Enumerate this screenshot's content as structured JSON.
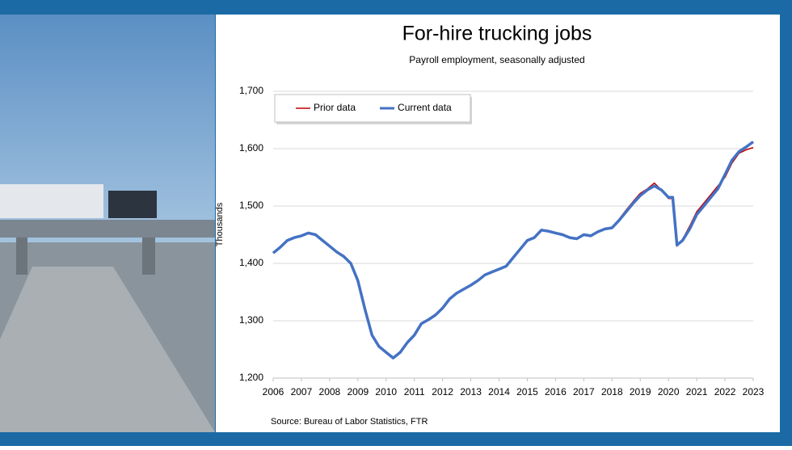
{
  "chart_data": {
    "type": "line",
    "title": "For-hire trucking jobs",
    "subtitle": "Payroll employment, seasonally adjusted",
    "y_label": "Thousands",
    "source": "Source: Bureau of Labor Statistics, FTR",
    "legend": "top-left",
    "grid": true,
    "xlim": [
      2006,
      2023
    ],
    "xticks": [
      2006,
      2007,
      2008,
      2009,
      2010,
      2011,
      2012,
      2013,
      2014,
      2015,
      2016,
      2017,
      2018,
      2019,
      2020,
      2021,
      2022,
      2023
    ],
    "ylim": [
      1200,
      1700
    ],
    "yticks": [
      {
        "value": 1200,
        "label": "1,200"
      },
      {
        "value": 1300,
        "label": "1,300"
      },
      {
        "value": 1400,
        "label": "1,400"
      },
      {
        "value": 1500,
        "label": "1,500"
      },
      {
        "value": 1600,
        "label": "1,600"
      },
      {
        "value": 1700,
        "label": "1,700"
      }
    ],
    "x": [
      2006.0,
      2006.25,
      2006.5,
      2006.75,
      2007.0,
      2007.25,
      2007.5,
      2007.75,
      2008.0,
      2008.25,
      2008.5,
      2008.75,
      2009.0,
      2009.25,
      2009.5,
      2009.75,
      2010.0,
      2010.25,
      2010.5,
      2010.75,
      2011.0,
      2011.25,
      2011.5,
      2011.75,
      2012.0,
      2012.25,
      2012.5,
      2012.75,
      2013.0,
      2013.25,
      2013.5,
      2013.75,
      2014.0,
      2014.25,
      2014.5,
      2014.75,
      2015.0,
      2015.25,
      2015.5,
      2015.75,
      2016.0,
      2016.25,
      2016.5,
      2016.75,
      2017.0,
      2017.25,
      2017.5,
      2017.75,
      2018.0,
      2018.25,
      2018.5,
      2018.75,
      2019.0,
      2019.25,
      2019.5,
      2019.75,
      2020.0,
      2020.15,
      2020.3,
      2020.5,
      2020.75,
      2021.0,
      2021.25,
      2021.5,
      2021.75,
      2022.0,
      2022.25,
      2022.5,
      2022.75,
      2023.0
    ],
    "series": [
      {
        "name": "Prior data",
        "color": "#c00000",
        "width": 1.5,
        "values": [
          1418,
          1428,
          1440,
          1445,
          1448,
          1453,
          1450,
          1440,
          1430,
          1420,
          1412,
          1400,
          1370,
          1320,
          1275,
          1255,
          1245,
          1235,
          1245,
          1262,
          1275,
          1295,
          1302,
          1310,
          1322,
          1338,
          1348,
          1355,
          1362,
          1370,
          1380,
          1385,
          1390,
          1395,
          1410,
          1425,
          1440,
          1445,
          1458,
          1456,
          1453,
          1450,
          1445,
          1443,
          1450,
          1448,
          1455,
          1460,
          1462,
          1477,
          1493,
          1508,
          1522,
          1530,
          1540,
          1528,
          1513,
          1513,
          1430,
          1442,
          1465,
          1490,
          1505,
          1520,
          1535,
          1550,
          1575,
          1592,
          1598,
          1602
        ]
      },
      {
        "name": "Current data",
        "color": "#4472c4",
        "width": 3.5,
        "values": [
          1418,
          1428,
          1440,
          1445,
          1448,
          1453,
          1450,
          1440,
          1430,
          1420,
          1412,
          1400,
          1370,
          1320,
          1275,
          1255,
          1245,
          1235,
          1245,
          1262,
          1275,
          1295,
          1302,
          1310,
          1322,
          1338,
          1348,
          1355,
          1362,
          1370,
          1380,
          1385,
          1390,
          1395,
          1410,
          1425,
          1440,
          1445,
          1458,
          1456,
          1453,
          1450,
          1445,
          1443,
          1450,
          1448,
          1455,
          1460,
          1462,
          1475,
          1490,
          1505,
          1518,
          1528,
          1535,
          1528,
          1515,
          1515,
          1432,
          1440,
          1460,
          1485,
          1500,
          1515,
          1530,
          1555,
          1580,
          1595,
          1603,
          1612
        ]
      }
    ]
  }
}
